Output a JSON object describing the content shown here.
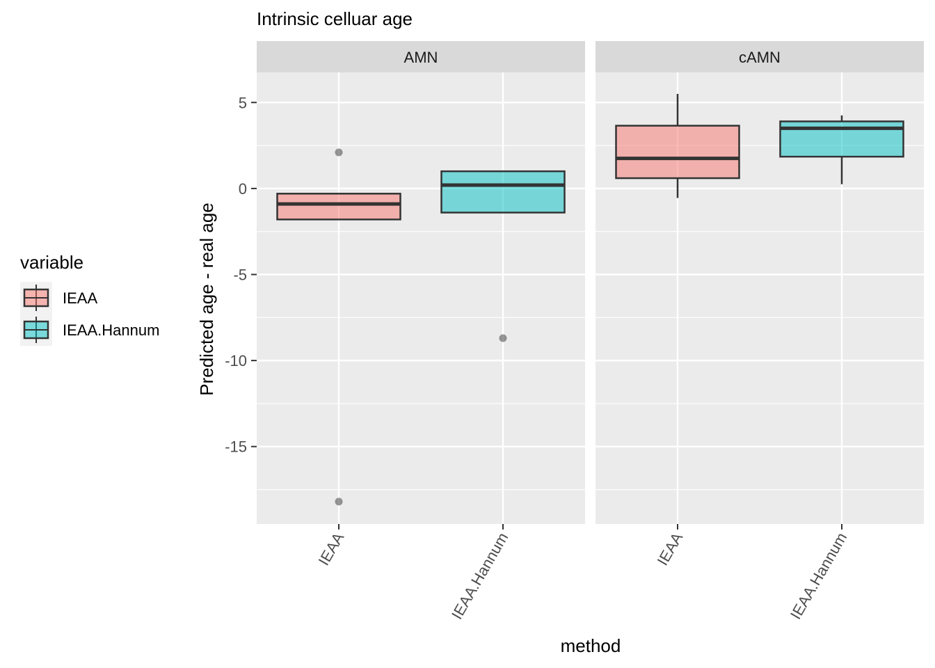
{
  "chart_data": {
    "type": "boxplot",
    "title": "Intrinsic celluar age",
    "xlabel": "method",
    "ylabel": "Predicted age - real age",
    "ylim": [
      -19.5,
      6.75
    ],
    "yticks": [
      5,
      0,
      -5,
      -10,
      -15
    ],
    "ytick_labels": [
      "5",
      "0",
      "-5",
      "-10",
      "-15"
    ],
    "categories": [
      "IEAA",
      "IEAA.Hannum"
    ],
    "grid": true,
    "legend": {
      "title": "variable",
      "position": "left",
      "entries": [
        {
          "label": "IEAA",
          "color": "#F8766D"
        },
        {
          "label": "IEAA.Hannum",
          "color": "#00BFC4"
        }
      ]
    },
    "facets": [
      {
        "name": "AMN",
        "boxes": [
          {
            "category": "IEAA",
            "whisker_low": -1.8,
            "q1": -1.8,
            "median": -0.9,
            "q3": -0.3,
            "whisker_high": -0.3,
            "outliers": [
              2.1,
              -18.2
            ]
          },
          {
            "category": "IEAA.Hannum",
            "whisker_low": -1.4,
            "q1": -1.4,
            "median": 0.2,
            "q3": 1.0,
            "whisker_high": 1.0,
            "outliers": [
              -8.7
            ]
          }
        ]
      },
      {
        "name": "cAMN",
        "boxes": [
          {
            "category": "IEAA",
            "whisker_low": -0.55,
            "q1": 0.6,
            "median": 1.75,
            "q3": 3.65,
            "whisker_high": 5.5,
            "outliers": []
          },
          {
            "category": "IEAA.Hannum",
            "whisker_low": 0.25,
            "q1": 1.85,
            "median": 3.5,
            "q3": 3.9,
            "whisker_high": 4.25,
            "outliers": []
          }
        ]
      }
    ]
  }
}
